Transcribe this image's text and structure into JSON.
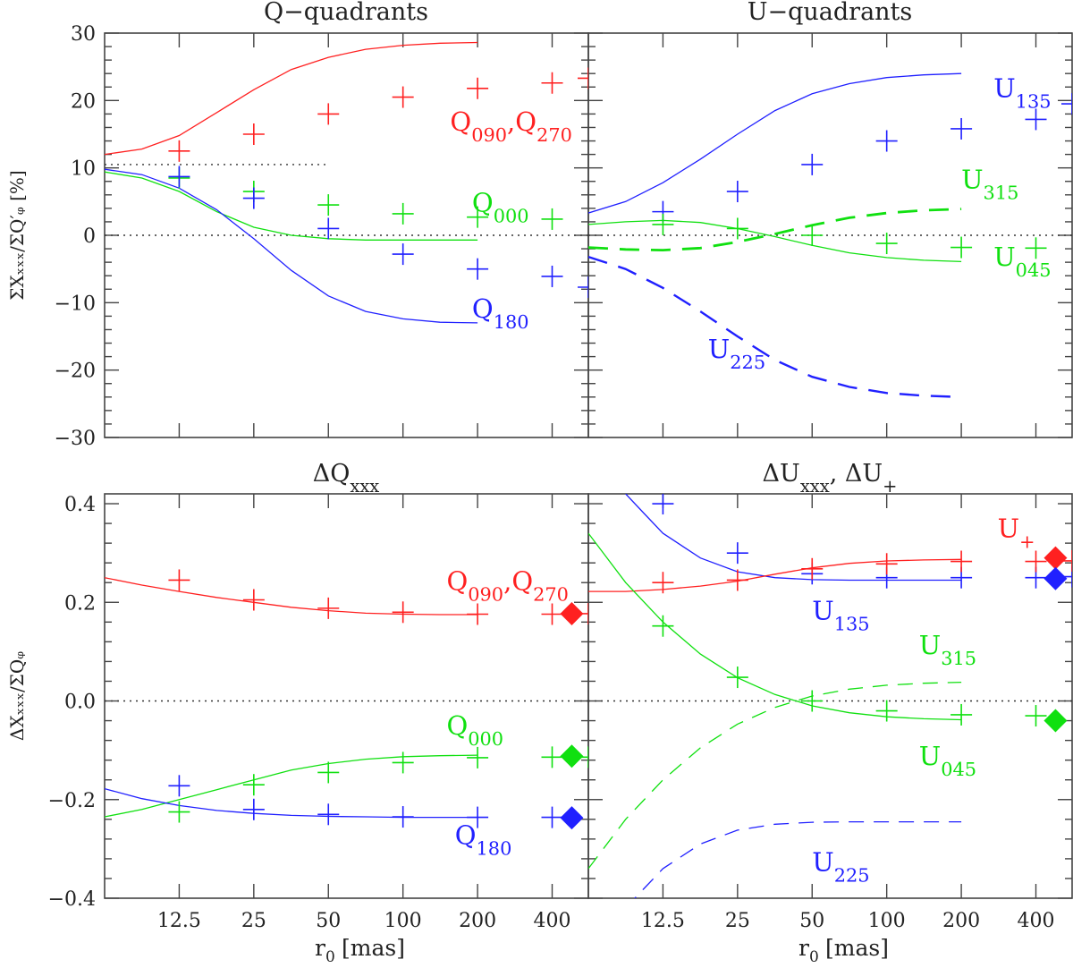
{
  "figure": {
    "xlabel": "r",
    "xlabel_sub": "0",
    "xlabel_unit": "[mas]",
    "top_ylabel": "ΣXₓₓₓ/ΣQ′ᵩ [%]",
    "bottom_ylabel": "ΔXₓₓₓ/ΣQᵩ",
    "x_tick_labels": [
      "12.5",
      "25",
      "50",
      "100",
      "200",
      "400"
    ],
    "top_y_tick_labels": [
      "30",
      "20",
      "10",
      "0",
      "−10",
      "−20",
      "−30"
    ],
    "bottom_y_tick_labels": [
      "0.4",
      "0.2",
      "0.0",
      "−0.2",
      "−0.4"
    ],
    "colors": {
      "red": "#ff2020",
      "blue": "#2020ff",
      "green": "#10e010"
    }
  },
  "chart_data": [
    {
      "id": "tl",
      "type": "line",
      "title": "Q−quadrants",
      "xscale": "log2",
      "xlim": [
        6.25,
        560
      ],
      "ylim": [
        -30,
        30
      ],
      "xticks": [
        12.5,
        25,
        50,
        100,
        200,
        400
      ],
      "yticks": [
        30,
        20,
        10,
        0,
        -10,
        -20,
        -30
      ],
      "refs": [
        {
          "y": 0,
          "x0": 6.25,
          "x1": 560
        },
        {
          "y": 10.5,
          "x0": 6.25,
          "x1": 50
        }
      ],
      "series": [
        {
          "name": "Q090,Q270",
          "color": "red",
          "dash": "solid",
          "width": 1.3,
          "x": [
            6.25,
            8.84,
            12.5,
            17.7,
            25,
            35.4,
            50,
            70.7,
            100,
            141,
            200
          ],
          "y": [
            12,
            12.8,
            14.8,
            18.2,
            21.6,
            24.6,
            26.4,
            27.6,
            28.2,
            28.5,
            28.6
          ]
        },
        {
          "name": "Q000",
          "color": "green",
          "dash": "solid",
          "width": 1.3,
          "x": [
            6.25,
            8.84,
            12.5,
            17.7,
            25,
            35.4,
            50,
            70.7,
            100,
            141,
            200
          ],
          "y": [
            9.4,
            8.5,
            6.5,
            3.5,
            1.2,
            0,
            -0.5,
            -0.7,
            -0.7,
            -0.7,
            -0.7
          ]
        },
        {
          "name": "Q180",
          "color": "blue",
          "dash": "solid",
          "width": 1.3,
          "x": [
            6.25,
            8.84,
            12.5,
            17.7,
            25,
            35.4,
            50,
            70.7,
            100,
            141,
            200
          ],
          "y": [
            9.8,
            9,
            7,
            3.8,
            -0.5,
            -5.2,
            -9,
            -11.3,
            -12.4,
            -12.9,
            -13
          ]
        }
      ],
      "points": [
        {
          "series": "Q090,Q270",
          "color": "red",
          "x": [
            12.5,
            25,
            50,
            100,
            200,
            400,
            560
          ],
          "y": [
            12.5,
            15,
            18,
            20.5,
            21.8,
            22.6,
            23.3
          ]
        },
        {
          "series": "Q000",
          "color": "green",
          "x": [
            12.5,
            25,
            50,
            100,
            200,
            400
          ],
          "y": [
            8.5,
            6.5,
            4.5,
            3.2,
            2.7,
            2.4
          ]
        },
        {
          "series": "Q180",
          "color": "blue",
          "x": [
            12.5,
            25,
            50,
            100,
            200,
            400,
            560
          ],
          "y": [
            8.7,
            5.5,
            1,
            -2.8,
            -5,
            -6.1,
            -7.7
          ]
        }
      ],
      "labels": [
        {
          "color": "red",
          "x": 155,
          "y": 15.5,
          "parts": [
            [
              "Q",
              "090"
            ],
            [
              "Q",
              "270"
            ]
          ]
        },
        {
          "color": "green",
          "x": 190,
          "y": 3.5,
          "parts": [
            [
              "Q",
              "000"
            ]
          ]
        },
        {
          "color": "blue",
          "x": 190,
          "y": -12.2,
          "parts": [
            [
              "Q",
              "180"
            ]
          ]
        }
      ]
    },
    {
      "id": "tr",
      "type": "line",
      "title": "U−quadrants",
      "xscale": "log2",
      "xlim": [
        6.25,
        560
      ],
      "ylim": [
        -30,
        30
      ],
      "xticks": [
        12.5,
        25,
        50,
        100,
        200,
        400
      ],
      "yticks": [
        30,
        20,
        10,
        0,
        -10,
        -20,
        -30
      ],
      "refs": [
        {
          "y": 0,
          "x0": 6.25,
          "x1": 560
        }
      ],
      "series": [
        {
          "name": "U135",
          "color": "blue",
          "dash": "solid",
          "width": 1.3,
          "x": [
            6.25,
            8.84,
            12.5,
            17.7,
            25,
            35.4,
            50,
            70.7,
            100,
            141,
            200
          ],
          "y": [
            3.3,
            5,
            7.8,
            11.3,
            15,
            18.5,
            21,
            22.5,
            23.4,
            23.8,
            24
          ]
        },
        {
          "name": "U045",
          "color": "green",
          "dash": "solid",
          "width": 1.3,
          "x": [
            6.25,
            8.84,
            12.5,
            17.7,
            25,
            35.4,
            50,
            70.7,
            100,
            141,
            200
          ],
          "y": [
            1.6,
            2,
            2.2,
            1.9,
            1,
            -0.2,
            -1.5,
            -2.6,
            -3.3,
            -3.7,
            -3.9
          ]
        },
        {
          "name": "U315",
          "color": "green",
          "dash": "long",
          "width": 2.8,
          "x": [
            6.25,
            8.84,
            12.5,
            17.7,
            25,
            35.4,
            50,
            70.7,
            100,
            141,
            200
          ],
          "y": [
            -1.8,
            -2.1,
            -2.2,
            -1.9,
            -1,
            0.2,
            1.5,
            2.6,
            3.3,
            3.7,
            3.9
          ]
        },
        {
          "name": "U225",
          "color": "blue",
          "dash": "long",
          "width": 2.4,
          "x": [
            6.25,
            8.84,
            12.5,
            17.7,
            25,
            35.4,
            50,
            70.7,
            100,
            141,
            200
          ],
          "y": [
            -3.2,
            -5,
            -7.8,
            -11.3,
            -15,
            -18.5,
            -21,
            -22.5,
            -23.4,
            -23.8,
            -24
          ]
        }
      ],
      "points": [
        {
          "series": "U135",
          "color": "blue",
          "x": [
            12.5,
            25,
            50,
            100,
            200,
            400,
            560
          ],
          "y": [
            3.5,
            6.5,
            10.5,
            14,
            15.8,
            17.2,
            19.5
          ]
        },
        {
          "series": "U045",
          "color": "green",
          "x": [
            12.5,
            25,
            50,
            100,
            200,
            400
          ],
          "y": [
            1.6,
            1,
            0,
            -1.2,
            -1.8,
            -1.9
          ]
        }
      ],
      "labels": [
        {
          "color": "blue",
          "x": 270,
          "y": 20.5,
          "parts": [
            [
              "U",
              "135"
            ]
          ]
        },
        {
          "color": "green",
          "x": 200,
          "y": 7,
          "parts": [
            [
              "U",
              "315"
            ]
          ]
        },
        {
          "color": "green",
          "x": 270,
          "y": -4.5,
          "parts": [
            [
              "U",
              "045"
            ]
          ]
        },
        {
          "color": "blue",
          "x": 19,
          "y": -18.2,
          "parts": [
            [
              "U",
              "225"
            ]
          ]
        }
      ]
    },
    {
      "id": "bl",
      "type": "line",
      "title_parts": [
        [
          "ΔQ",
          "xxx"
        ]
      ],
      "xscale": "log2",
      "xlim": [
        6.25,
        560
      ],
      "ylim": [
        -0.4,
        0.42
      ],
      "xticks": [
        12.5,
        25,
        50,
        100,
        200,
        400
      ],
      "yticks": [
        0.4,
        0.2,
        0,
        -0.2,
        -0.4
      ],
      "refs": [
        {
          "y": 0,
          "x0": 6.25,
          "x1": 560
        }
      ],
      "series": [
        {
          "name": "Q090,Q270",
          "color": "red",
          "dash": "solid",
          "width": 1.3,
          "x": [
            6.25,
            8.84,
            12.5,
            17.7,
            25,
            35.4,
            50,
            70.7,
            100,
            141,
            200
          ],
          "y": [
            0.25,
            0.235,
            0.222,
            0.21,
            0.2,
            0.19,
            0.183,
            0.178,
            0.176,
            0.175,
            0.175
          ]
        },
        {
          "name": "Q000",
          "color": "green",
          "dash": "solid",
          "width": 1.3,
          "x": [
            6.25,
            8.84,
            12.5,
            17.7,
            25,
            35.4,
            50,
            70.7,
            100,
            141,
            200
          ],
          "y": [
            -0.235,
            -0.22,
            -0.2,
            -0.18,
            -0.16,
            -0.14,
            -0.127,
            -0.118,
            -0.113,
            -0.111,
            -0.11
          ]
        },
        {
          "name": "Q180",
          "color": "blue",
          "dash": "solid",
          "width": 1.3,
          "x": [
            6.25,
            8.84,
            12.5,
            17.7,
            25,
            35.4,
            50,
            70.7,
            100,
            141,
            200
          ],
          "y": [
            -0.178,
            -0.198,
            -0.212,
            -0.222,
            -0.228,
            -0.232,
            -0.234,
            -0.235,
            -0.236,
            -0.236,
            -0.236
          ]
        }
      ],
      "points": [
        {
          "series": "Q090,Q270",
          "color": "red",
          "x": [
            12.5,
            25,
            50,
            100,
            200,
            400,
            560
          ],
          "y": [
            0.245,
            0.205,
            0.188,
            0.18,
            0.176,
            0.176,
            0.177
          ]
        },
        {
          "series": "Q000",
          "color": "green",
          "x": [
            12.5,
            25,
            50,
            100,
            200,
            400,
            560
          ],
          "y": [
            -0.225,
            -0.17,
            -0.145,
            -0.125,
            -0.115,
            -0.114,
            -0.114
          ]
        },
        {
          "series": "Q180",
          "color": "blue",
          "x": [
            12.5,
            25,
            50,
            100,
            200,
            400
          ],
          "y": [
            -0.172,
            -0.22,
            -0.23,
            -0.235,
            -0.236,
            -0.236
          ]
        }
      ],
      "diamonds": [
        {
          "color": "red",
          "x": 480,
          "y": 0.177
        },
        {
          "color": "green",
          "x": 480,
          "y": -0.112
        },
        {
          "color": "blue",
          "x": 480,
          "y": -0.237
        }
      ],
      "labels": [
        {
          "color": "red",
          "x": 150,
          "y": 0.225,
          "parts": [
            [
              "Q",
              "090"
            ],
            [
              "Q",
              "270"
            ]
          ]
        },
        {
          "color": "green",
          "x": 150,
          "y": -0.068,
          "parts": [
            [
              "Q",
              "000"
            ]
          ]
        },
        {
          "color": "blue",
          "x": 162,
          "y": -0.29,
          "parts": [
            [
              "Q",
              "180"
            ]
          ]
        }
      ]
    },
    {
      "id": "br",
      "type": "line",
      "title_parts": [
        [
          "ΔU",
          "xxx"
        ],
        [
          "ΔU",
          "+"
        ]
      ],
      "xscale": "log2",
      "xlim": [
        6.25,
        560
      ],
      "ylim": [
        -0.4,
        0.42
      ],
      "xticks": [
        12.5,
        25,
        50,
        100,
        200,
        400
      ],
      "yticks": [
        0.4,
        0.2,
        0,
        -0.2,
        -0.4
      ],
      "refs": [
        {
          "y": 0,
          "x0": 6.25,
          "x1": 560
        }
      ],
      "series": [
        {
          "name": "U135",
          "color": "blue",
          "dash": "solid",
          "width": 1.3,
          "x": [
            8.84,
            10.5,
            12.5,
            17.7,
            25,
            35.4,
            50,
            70.7,
            100,
            141,
            200
          ],
          "y": [
            0.42,
            0.38,
            0.34,
            0.29,
            0.262,
            0.25,
            0.246,
            0.245,
            0.245,
            0.245,
            0.245
          ]
        },
        {
          "name": "U+",
          "color": "red",
          "dash": "solid",
          "width": 1.3,
          "x": [
            6.25,
            8.84,
            12.5,
            17.7,
            25,
            35.4,
            50,
            70.7,
            100,
            141,
            200
          ],
          "y": [
            0.222,
            0.222,
            0.226,
            0.233,
            0.243,
            0.257,
            0.27,
            0.279,
            0.284,
            0.286,
            0.287
          ]
        },
        {
          "name": "U045",
          "color": "green",
          "dash": "solid",
          "width": 1.3,
          "x": [
            6.25,
            8.84,
            12.5,
            17.7,
            25,
            35.4,
            50,
            70.7,
            100,
            141,
            200
          ],
          "y": [
            0.34,
            0.24,
            0.16,
            0.095,
            0.047,
            0.013,
            -0.01,
            -0.024,
            -0.032,
            -0.036,
            -0.038
          ]
        },
        {
          "name": "U315",
          "color": "green",
          "dash": "medium",
          "width": 1.3,
          "x": [
            6.25,
            8.84,
            12.5,
            17.7,
            25,
            35.4,
            50,
            70.7,
            100,
            141,
            200
          ],
          "y": [
            -0.34,
            -0.24,
            -0.16,
            -0.095,
            -0.047,
            -0.013,
            0.01,
            0.024,
            0.032,
            0.036,
            0.038
          ]
        },
        {
          "name": "U225",
          "color": "blue",
          "dash": "medium",
          "width": 1.3,
          "x": [
            8.84,
            10.5,
            12.5,
            17.7,
            25,
            35.4,
            50,
            70.7,
            100,
            141,
            200
          ],
          "y": [
            -0.42,
            -0.38,
            -0.34,
            -0.29,
            -0.262,
            -0.25,
            -0.246,
            -0.245,
            -0.245,
            -0.245,
            -0.245
          ]
        }
      ],
      "points": [
        {
          "series": "U135",
          "color": "blue",
          "x": [
            12.5,
            25,
            50,
            100,
            200,
            400,
            560
          ],
          "y": [
            0.4,
            0.3,
            0.258,
            0.25,
            0.25,
            0.25,
            0.252
          ]
        },
        {
          "series": "U+",
          "color": "red",
          "x": [
            12.5,
            25,
            50,
            100,
            200,
            400,
            560
          ],
          "y": [
            0.24,
            0.245,
            0.268,
            0.278,
            0.283,
            0.283,
            0.284
          ]
        },
        {
          "series": "U045",
          "color": "green",
          "x": [
            12.5,
            25,
            50,
            100,
            200,
            400
          ],
          "y": [
            0.152,
            0.048,
            0,
            -0.02,
            -0.028,
            -0.03
          ]
        }
      ],
      "diamonds": [
        {
          "color": "red",
          "x": 480,
          "y": 0.29
        },
        {
          "color": "blue",
          "x": 480,
          "y": 0.248
        },
        {
          "color": "green",
          "x": 480,
          "y": -0.04
        }
      ],
      "labels": [
        {
          "color": "red",
          "x": 280,
          "y": 0.332,
          "parts": [
            [
              "U",
              "+"
            ]
          ]
        },
        {
          "color": "blue",
          "x": 50,
          "y": 0.165,
          "parts": [
            [
              "U",
              "135"
            ]
          ]
        },
        {
          "color": "green",
          "x": 135,
          "y": 0.095,
          "parts": [
            [
              "U",
              "315"
            ]
          ]
        },
        {
          "color": "green",
          "x": 135,
          "y": -0.13,
          "parts": [
            [
              "U",
              "045"
            ]
          ]
        },
        {
          "color": "blue",
          "x": 50,
          "y": -0.345,
          "parts": [
            [
              "U",
              "225"
            ]
          ]
        }
      ]
    }
  ]
}
